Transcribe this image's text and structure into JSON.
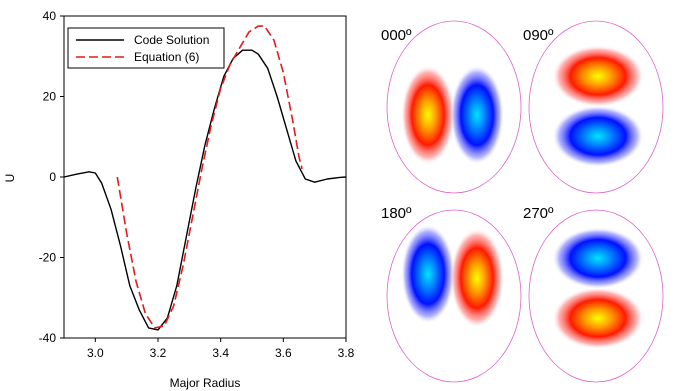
{
  "chart_data": [
    {
      "type": "line",
      "title": "",
      "xlabel": "Major Radius",
      "ylabel": "U",
      "xlim": [
        2.9,
        3.8
      ],
      "ylim": [
        -40,
        40
      ],
      "xticks": [
        "3.0",
        "3.2",
        "3.4",
        "3.6",
        "3.8"
      ],
      "yticks": [
        "-40",
        "-20",
        "0",
        "20",
        "40"
      ],
      "grid": false,
      "legend": "top-left",
      "series": [
        {
          "name": "Code Solution",
          "color": "#000000",
          "style": "solid",
          "x": [
            2.9,
            2.94,
            2.98,
            3.0,
            3.02,
            3.05,
            3.08,
            3.11,
            3.14,
            3.17,
            3.2,
            3.23,
            3.26,
            3.29,
            3.32,
            3.35,
            3.38,
            3.41,
            3.44,
            3.47,
            3.5,
            3.52,
            3.55,
            3.58,
            3.61,
            3.64,
            3.67,
            3.7,
            3.74,
            3.78,
            3.8
          ],
          "y": [
            0,
            0.7,
            1.3,
            1.0,
            -1.5,
            -8,
            -17,
            -27,
            -33,
            -37.5,
            -38,
            -35,
            -27,
            -15,
            -3,
            8,
            17,
            25,
            29.5,
            31.5,
            31.5,
            30.5,
            27,
            20,
            12,
            4,
            -0.5,
            -1.3,
            -0.5,
            -0.1,
            0
          ]
        },
        {
          "name": "Equation (6)",
          "color": "#e41a1c",
          "style": "dashed",
          "x": [
            3.07,
            3.1,
            3.13,
            3.16,
            3.19,
            3.22,
            3.25,
            3.28,
            3.31,
            3.34,
            3.37,
            3.4,
            3.43,
            3.46,
            3.49,
            3.52,
            3.54,
            3.57,
            3.6,
            3.63,
            3.65,
            3.66
          ],
          "y": [
            0,
            -14,
            -26,
            -34,
            -37.5,
            -37,
            -32,
            -22,
            -10,
            2,
            13,
            22,
            28,
            32,
            36,
            37.5,
            37.5,
            34,
            26,
            14,
            5,
            2
          ]
        }
      ]
    },
    {
      "type": "heatmap",
      "panels": [
        {
          "label": "000º",
          "orientation": "horizontal",
          "left_color": "red",
          "right_color": "blue"
        },
        {
          "label": "090º",
          "orientation": "vertical",
          "top_color": "red",
          "bottom_color": "blue"
        },
        {
          "label": "180º",
          "orientation": "horizontal",
          "left_color": "blue",
          "right_color": "red"
        },
        {
          "label": "270º",
          "orientation": "vertical",
          "top_color": "blue",
          "bottom_color": "red"
        }
      ]
    }
  ]
}
